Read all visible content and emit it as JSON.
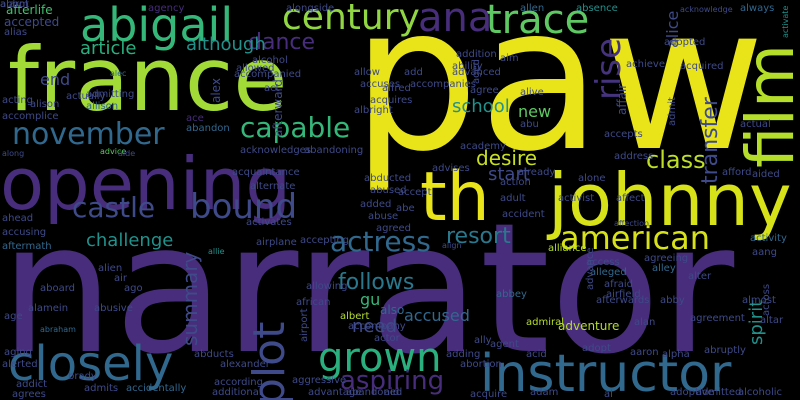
{
  "palette": {
    "background": "#000000",
    "yellow": "#e8e419",
    "lime": "#a2da37",
    "green": "#5ec962",
    "teal_green": "#35b779",
    "teal": "#21918c",
    "blue": "#31688e",
    "indigo": "#3e4a89",
    "purple": "#472d7b",
    "dark_purple": "#440154"
  },
  "words": [
    {
      "text": "paw",
      "color": "#e8e419"
    },
    {
      "text": "narrator",
      "color": "#472d7b"
    },
    {
      "text": "france",
      "color": "#a2da37"
    },
    {
      "text": "opening",
      "color": "#472d7b"
    },
    {
      "text": "abigail",
      "color": "#35b779"
    },
    {
      "text": "johnny",
      "color": "#d8e219"
    },
    {
      "text": "th",
      "color": "#e8e419"
    },
    {
      "text": "instructor",
      "color": "#31688e"
    },
    {
      "text": "closely",
      "color": "#31688e"
    },
    {
      "text": "trace",
      "color": "#5ec962"
    },
    {
      "text": "film",
      "color": "#b5de2b"
    },
    {
      "text": "century",
      "color": "#90d743"
    },
    {
      "text": "ana",
      "color": "#472d7b"
    },
    {
      "text": "november",
      "color": "#31688e"
    },
    {
      "text": "capable",
      "color": "#35b779"
    },
    {
      "text": "rise",
      "color": "#46337e"
    },
    {
      "text": "bound",
      "color": "#3e4a89"
    },
    {
      "text": "grown",
      "color": "#2ab07f"
    },
    {
      "text": "plot",
      "color": "#3e4a89"
    },
    {
      "text": "american",
      "color": "#d8e219"
    },
    {
      "text": "actress",
      "color": "#31688e"
    },
    {
      "text": "aspiring",
      "color": "#472d7b"
    },
    {
      "text": "castle",
      "color": "#3e4a89"
    },
    {
      "text": "resort",
      "color": "#2a788e"
    },
    {
      "text": "dance",
      "color": "#472d7b"
    },
    {
      "text": "challenge",
      "color": "#21918c"
    },
    {
      "text": "article",
      "color": "#2ab07f"
    },
    {
      "text": "although",
      "color": "#21918c"
    },
    {
      "text": "follows",
      "color": "#2a788e"
    },
    {
      "text": "desire",
      "color": "#c8e020"
    },
    {
      "text": "class",
      "color": "#bddf26"
    },
    {
      "text": "transfer",
      "color": "#3e4a89"
    },
    {
      "text": "spirit",
      "color": "#21918c"
    },
    {
      "text": "summary",
      "color": "#3e4a89"
    },
    {
      "text": "start",
      "color": "#3e4a89"
    },
    {
      "text": "school",
      "color": "#21918c"
    },
    {
      "text": "need",
      "color": "#3e4a89"
    },
    {
      "text": "accused",
      "color": "#31688e"
    },
    {
      "text": "gu",
      "color": "#35b779"
    },
    {
      "text": "new",
      "color": "#5ec962"
    },
    {
      "text": "end",
      "color": "#3e4a89"
    },
    {
      "text": "alice",
      "color": "#3e4a89"
    },
    {
      "text": "also",
      "color": "#31688e"
    },
    {
      "text": "adventure",
      "color": "#b5de2b"
    },
    {
      "text": "afterlife",
      "color": "#44bf70"
    },
    {
      "text": "accepted",
      "color": "#3e4a89"
    },
    {
      "text": "alias",
      "color": "#3e4a89"
    },
    {
      "text": "agency",
      "color": "#472d7b"
    },
    {
      "text": "alongside",
      "color": "#3e4a89"
    },
    {
      "text": "allen",
      "color": "#31688e"
    },
    {
      "text": "absence",
      "color": "#21918c"
    },
    {
      "text": "acknowledge",
      "color": "#3e4a89"
    },
    {
      "text": "always",
      "color": "#31688e"
    },
    {
      "text": "activate",
      "color": "#21918c"
    },
    {
      "text": "actually",
      "color": "#3e4a89"
    },
    {
      "text": "accomplice",
      "color": "#3e4a89"
    },
    {
      "text": "admitting",
      "color": "#3e4a89"
    },
    {
      "text": "allison",
      "color": "#31688e"
    },
    {
      "text": "alison",
      "color": "#3e4a89"
    },
    {
      "text": "acting",
      "color": "#3e4a89"
    },
    {
      "text": "alec",
      "color": "#31688e"
    },
    {
      "text": "ace",
      "color": "#472d7b"
    },
    {
      "text": "abandoning",
      "color": "#3e4a89"
    },
    {
      "text": "acknowledges",
      "color": "#3e4a89"
    },
    {
      "text": "along",
      "color": "#3e4a89"
    },
    {
      "text": "advice",
      "color": "#5ec962"
    },
    {
      "text": "aide",
      "color": "#3e4a89"
    },
    {
      "text": "abandon",
      "color": "#31688e"
    },
    {
      "text": "ahead",
      "color": "#3e4a89"
    },
    {
      "text": "accusing",
      "color": "#3e4a89"
    },
    {
      "text": "aftermath",
      "color": "#31688e"
    },
    {
      "text": "acquaintance",
      "color": "#3e4a89"
    },
    {
      "text": "afford",
      "color": "#3e4a89"
    },
    {
      "text": "aided",
      "color": "#3e4a89"
    },
    {
      "text": "activity",
      "color": "#31688e"
    },
    {
      "text": "aang",
      "color": "#3e4a89"
    },
    {
      "text": "allie",
      "color": "#21918c"
    },
    {
      "text": "airplane",
      "color": "#3e4a89"
    },
    {
      "text": "accepting",
      "color": "#3e4a89"
    },
    {
      "text": "agreed",
      "color": "#3e4a89"
    },
    {
      "text": "align",
      "color": "#3e4a89"
    },
    {
      "text": "alliance",
      "color": "#b5de2b"
    },
    {
      "text": "alien",
      "color": "#3e4a89"
    },
    {
      "text": "air",
      "color": "#3e4a89"
    },
    {
      "text": "ago",
      "color": "#3e4a89"
    },
    {
      "text": "aboard",
      "color": "#3e4a89"
    },
    {
      "text": "alamein",
      "color": "#3e4a89"
    },
    {
      "text": "age",
      "color": "#3e4a89"
    },
    {
      "text": "abraham",
      "color": "#31688e"
    },
    {
      "text": "allowing",
      "color": "#3e4a89"
    },
    {
      "text": "albert",
      "color": "#b5de2b"
    },
    {
      "text": "accompany",
      "color": "#3e4a89"
    },
    {
      "text": "actor",
      "color": "#3e4a89"
    },
    {
      "text": "ally",
      "color": "#3e4a89"
    },
    {
      "text": "admiral",
      "color": "#b5de2b"
    },
    {
      "text": "abbey",
      "color": "#31688e"
    },
    {
      "text": "alleged",
      "color": "#31688e"
    },
    {
      "text": "afraid",
      "color": "#3e4a89"
    },
    {
      "text": "access",
      "color": "#3e4a89"
    },
    {
      "text": "agreeing",
      "color": "#3e4a89"
    },
    {
      "text": "alley",
      "color": "#31688e"
    },
    {
      "text": "abby",
      "color": "#3e4a89"
    },
    {
      "text": "alan",
      "color": "#3e4a89"
    },
    {
      "text": "almost",
      "color": "#3e4a89"
    },
    {
      "text": "across",
      "color": "#3e4a89"
    },
    {
      "text": "aaron",
      "color": "#3e4a89"
    },
    {
      "text": "alpha",
      "color": "#3e4a89"
    },
    {
      "text": "abruptly",
      "color": "#3e4a89"
    },
    {
      "text": "acid",
      "color": "#3e4a89"
    },
    {
      "text": "adopt",
      "color": "#3e4a89"
    },
    {
      "text": "adding",
      "color": "#3e4a89"
    },
    {
      "text": "abortion",
      "color": "#3e4a89"
    },
    {
      "text": "aging",
      "color": "#3e4a89"
    },
    {
      "text": "abducts",
      "color": "#3e4a89"
    },
    {
      "text": "alexander",
      "color": "#3e4a89"
    },
    {
      "text": "alerted",
      "color": "#3e4a89"
    },
    {
      "text": "addict",
      "color": "#3e4a89"
    },
    {
      "text": "admits",
      "color": "#3e4a89"
    },
    {
      "text": "agrees",
      "color": "#3e4a89"
    },
    {
      "text": "accidentally",
      "color": "#31688e"
    },
    {
      "text": "brady",
      "color": "#3e4a89"
    },
    {
      "text": "according",
      "color": "#3e4a89"
    },
    {
      "text": "additional",
      "color": "#3e4a89"
    },
    {
      "text": "aggressive",
      "color": "#3e4a89"
    },
    {
      "text": "advantage",
      "color": "#3e4a89"
    },
    {
      "text": "abandoned",
      "color": "#3e4a89"
    },
    {
      "text": "aid",
      "color": "#3e4a89"
    },
    {
      "text": "acquire",
      "color": "#3e4a89"
    },
    {
      "text": "adam",
      "color": "#3e4a89"
    },
    {
      "text": "al",
      "color": "#3e4a89"
    },
    {
      "text": "adoptive",
      "color": "#3e4a89"
    },
    {
      "text": "alcoholic",
      "color": "#3e4a89"
    },
    {
      "text": "admitted",
      "color": "#3e4a89"
    },
    {
      "text": "alternate",
      "color": "#3e4a89"
    },
    {
      "text": "activates",
      "color": "#3e4a89"
    },
    {
      "text": "added",
      "color": "#3e4a89"
    },
    {
      "text": "abuse",
      "color": "#3e4a89"
    },
    {
      "text": "abused",
      "color": "#3e4a89"
    },
    {
      "text": "accept",
      "color": "#3e4a89"
    },
    {
      "text": "abe",
      "color": "#3e4a89"
    },
    {
      "text": "adult",
      "color": "#3e4a89"
    },
    {
      "text": "accident",
      "color": "#3e4a89"
    },
    {
      "text": "action",
      "color": "#3e4a89"
    },
    {
      "text": "abducted",
      "color": "#3e4a89"
    },
    {
      "text": "advises",
      "color": "#3e4a89"
    },
    {
      "text": "accuses",
      "color": "#3e4a89"
    },
    {
      "text": "alfred",
      "color": "#3e4a89"
    },
    {
      "text": "accompanies",
      "color": "#3e4a89"
    },
    {
      "text": "alive",
      "color": "#3e4a89"
    },
    {
      "text": "abu",
      "color": "#3e4a89"
    },
    {
      "text": "albright",
      "color": "#3e4a89"
    },
    {
      "text": "acquires",
      "color": "#3e4a89"
    },
    {
      "text": "allow",
      "color": "#3e4a89"
    },
    {
      "text": "add",
      "color": "#3e4a89"
    },
    {
      "text": "advanced",
      "color": "#3e4a89"
    },
    {
      "text": "addition",
      "color": "#3e4a89"
    },
    {
      "text": "ability",
      "color": "#3e4a89"
    },
    {
      "text": "aim",
      "color": "#3e4a89"
    },
    {
      "text": "achieve",
      "color": "#3e4a89"
    },
    {
      "text": "adopted",
      "color": "#3e4a89"
    },
    {
      "text": "acquired",
      "color": "#3e4a89"
    },
    {
      "text": "affair",
      "color": "#3e4a89"
    },
    {
      "text": "admit",
      "color": "#3e4a89"
    },
    {
      "text": "actual",
      "color": "#3e4a89"
    },
    {
      "text": "accompanied",
      "color": "#3e4a89"
    },
    {
      "text": "allowed",
      "color": "#3e4a89"
    },
    {
      "text": "alcohol",
      "color": "#3e4a89"
    },
    {
      "text": "alex",
      "color": "#3e4a89"
    },
    {
      "text": "act",
      "color": "#3e4a89"
    },
    {
      "text": "afterward",
      "color": "#3e4a89"
    },
    {
      "text": "address",
      "color": "#3e4a89"
    },
    {
      "text": "alone",
      "color": "#3e4a89"
    },
    {
      "text": "activist",
      "color": "#3e4a89"
    },
    {
      "text": "affect",
      "color": "#3e4a89"
    },
    {
      "text": "alter",
      "color": "#3e4a89"
    },
    {
      "text": "airfield",
      "color": "#3e4a89"
    },
    {
      "text": "afterwards",
      "color": "#3e4a89"
    },
    {
      "text": "agreement",
      "color": "#3e4a89"
    },
    {
      "text": "abusive",
      "color": "#3e4a89"
    },
    {
      "text": "african",
      "color": "#3e4a89"
    },
    {
      "text": "airport",
      "color": "#3e4a89"
    },
    {
      "text": "altar",
      "color": "#3e4a89"
    },
    {
      "text": "aged",
      "color": "#3e4a89"
    },
    {
      "text": "academy",
      "color": "#3e4a89"
    },
    {
      "text": "accepts",
      "color": "#3e4a89"
    },
    {
      "text": "affection",
      "color": "#3e4a89"
    },
    {
      "text": "already",
      "color": "#3e4a89"
    },
    {
      "text": "agent",
      "color": "#3e4a89"
    },
    {
      "text": "advance",
      "color": "#3e4a89"
    },
    {
      "text": "agree",
      "color": "#3e4a89"
    },
    {
      "text": "alarm",
      "color": "#3e4a89"
    },
    {
      "text": "abbot",
      "color": "#3e4a89"
    }
  ]
}
